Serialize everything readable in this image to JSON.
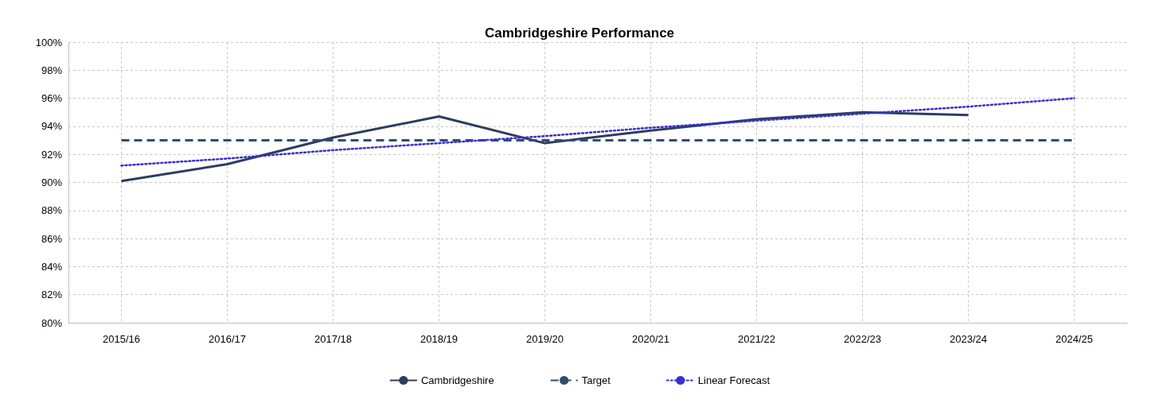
{
  "chart_data": {
    "type": "line",
    "title": "Cambridgeshire Performance",
    "categories": [
      "2015/16",
      "2016/17",
      "2017/18",
      "2018/19",
      "2019/20",
      "2020/21",
      "2021/22",
      "2022/23",
      "2023/24",
      "2024/25"
    ],
    "series": [
      {
        "name": "Cambridgeshire",
        "color": "#2e3d5f",
        "line_style": "solid",
        "values": [
          90.1,
          91.3,
          93.2,
          94.7,
          92.8,
          93.7,
          94.5,
          95.0,
          94.8,
          null
        ]
      },
      {
        "name": "Target",
        "color": "#2f4e6e",
        "line_style": "dashed",
        "values": [
          93,
          93,
          93,
          93,
          93,
          93,
          93,
          93,
          93,
          93
        ]
      },
      {
        "name": "Linear Forecast",
        "color": "#3a2fd0",
        "line_style": "dotted",
        "values": [
          91.2,
          91.7,
          92.3,
          92.8,
          93.3,
          93.9,
          94.4,
          94.9,
          95.4,
          96.0
        ]
      }
    ],
    "ylim": [
      80,
      100
    ],
    "yticks": [
      {
        "value": 80,
        "label": "80%"
      },
      {
        "value": 82,
        "label": "82%"
      },
      {
        "value": 84,
        "label": "84%"
      },
      {
        "value": 86,
        "label": "86%"
      },
      {
        "value": 88,
        "label": "88%"
      },
      {
        "value": 90,
        "label": "90%"
      },
      {
        "value": 92,
        "label": "92%"
      },
      {
        "value": 94,
        "label": "94%"
      },
      {
        "value": 96,
        "label": "96%"
      },
      {
        "value": 98,
        "label": "98%"
      },
      {
        "value": 100,
        "label": "100%"
      }
    ],
    "grid": true,
    "legend": "bottom",
    "marker": "none"
  }
}
